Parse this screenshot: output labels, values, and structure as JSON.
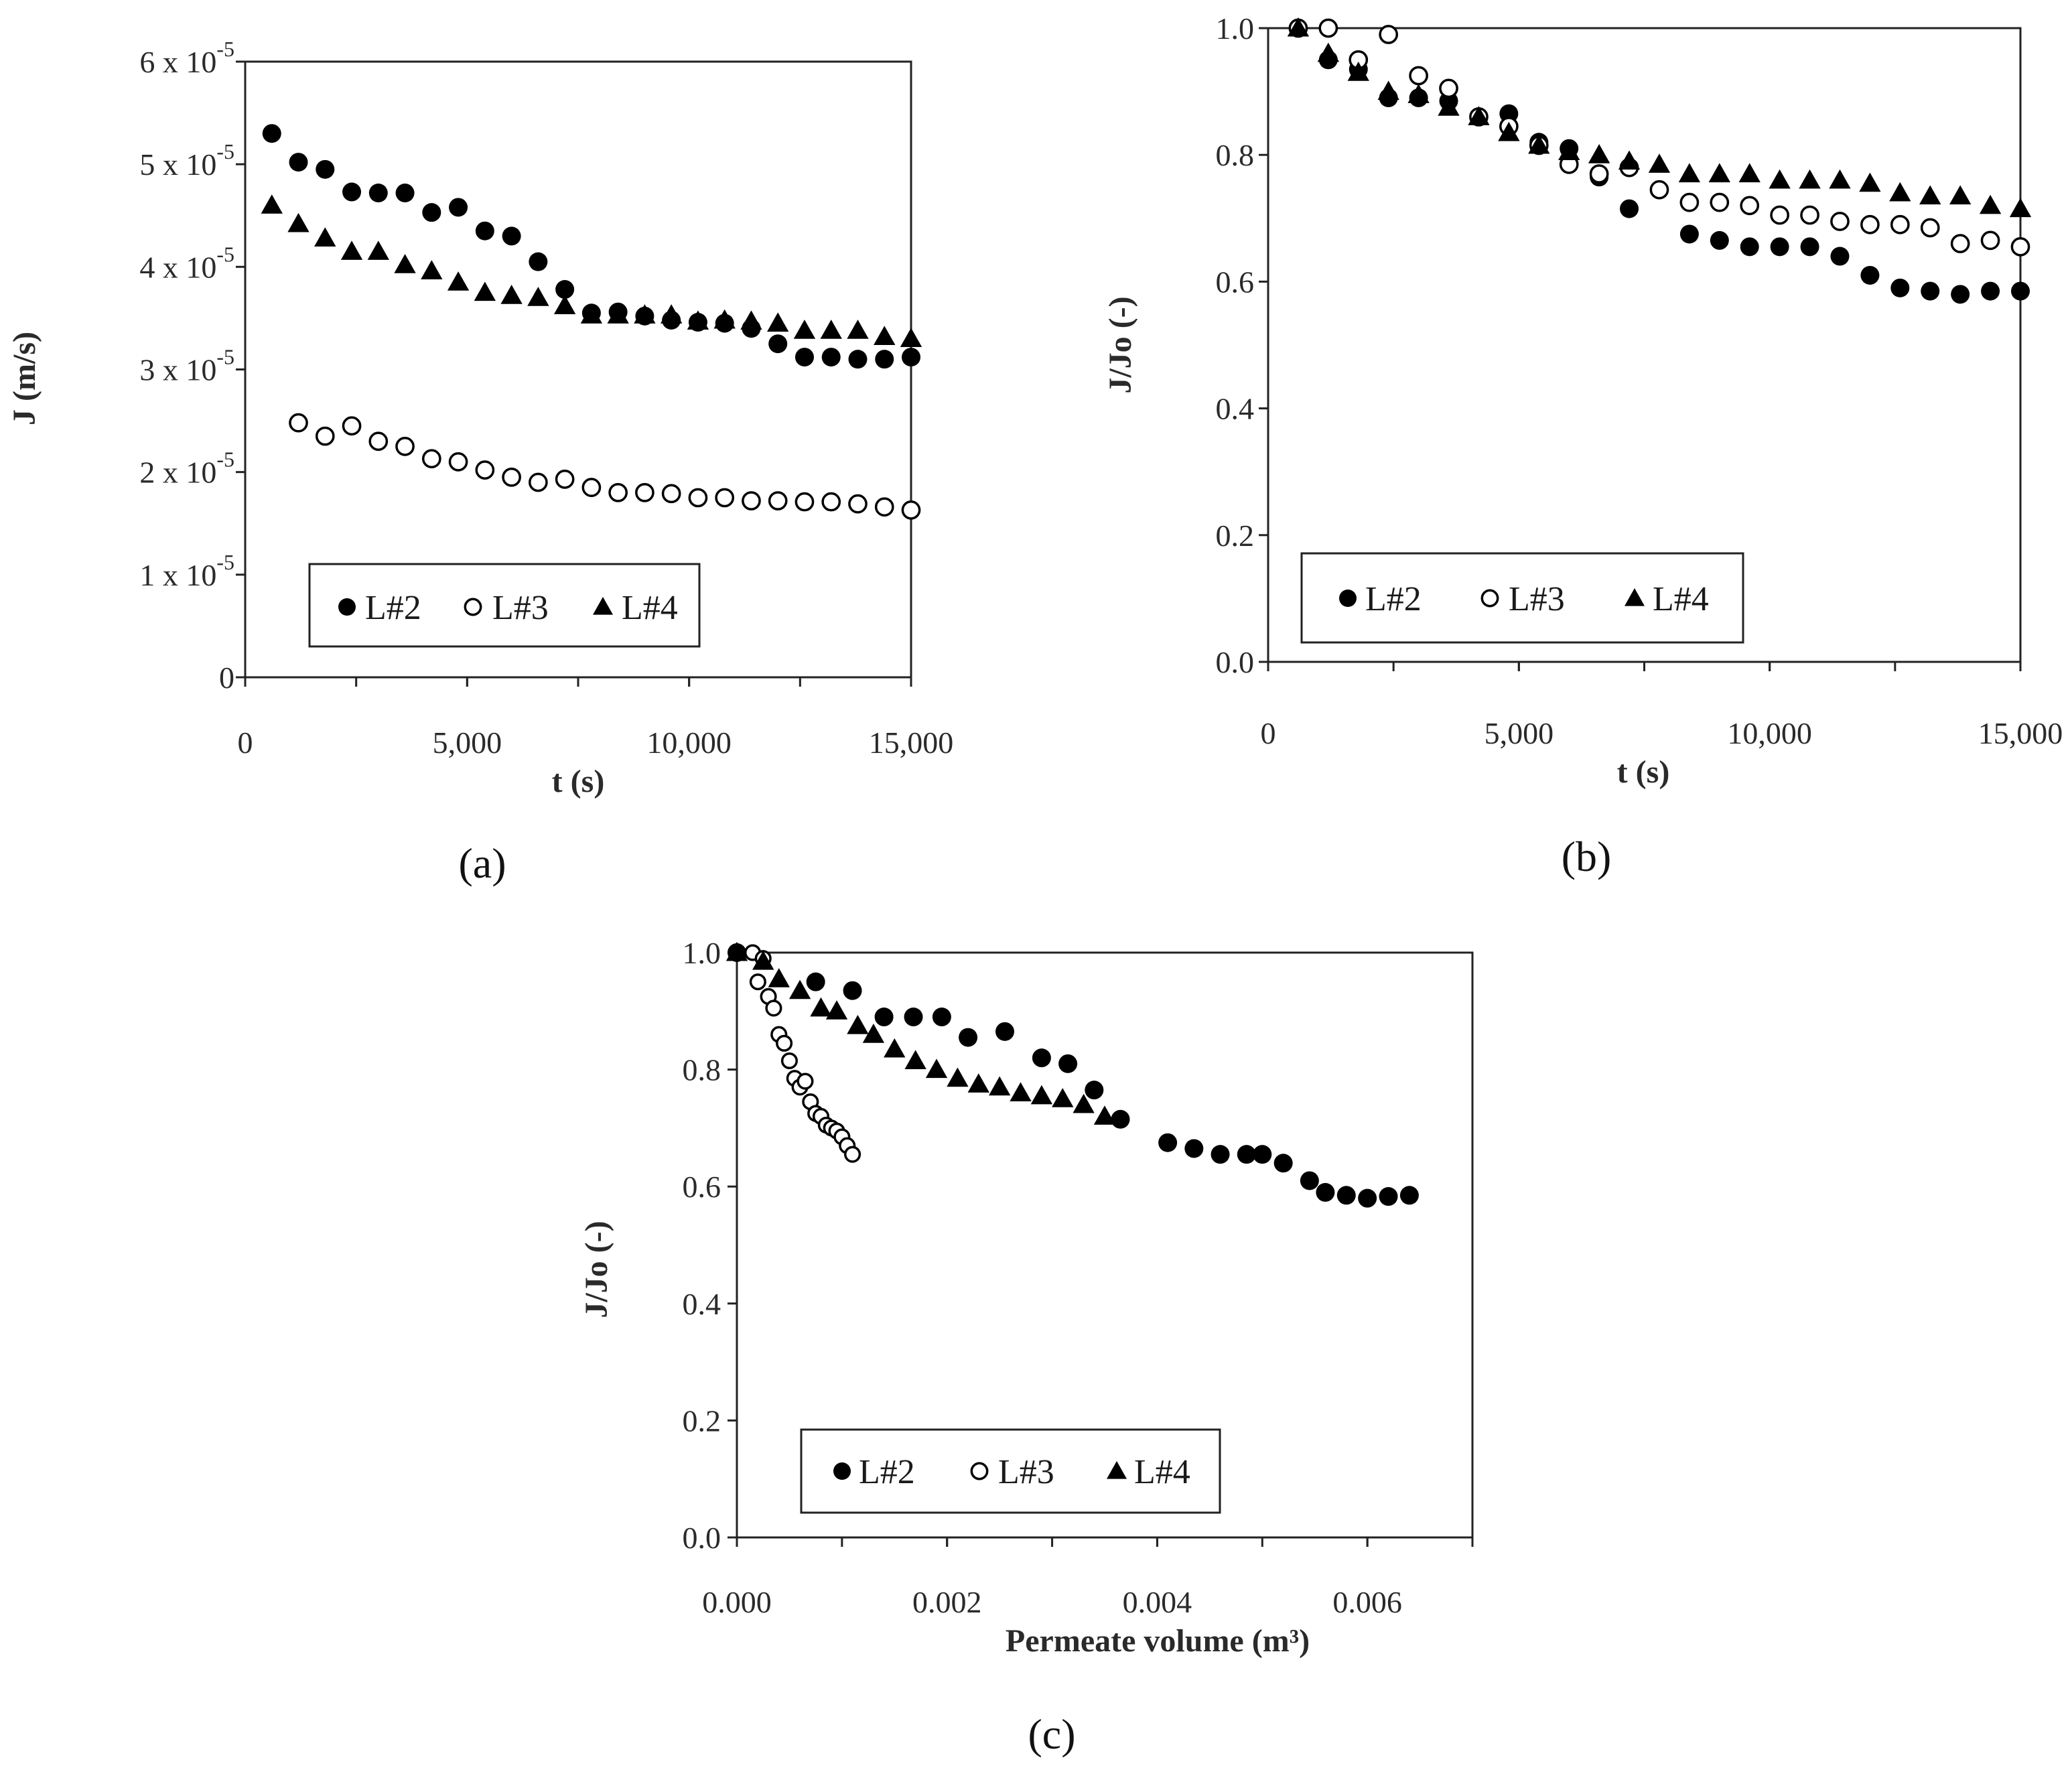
{
  "colors": {
    "ink": "#000000",
    "axis": "#222222",
    "background": "#ffffff"
  },
  "chart_data": [
    {
      "panel": "a",
      "type": "scatter",
      "xlabel": "t (s)",
      "ylabel": "J (m/s)",
      "xlim": [
        0,
        15000
      ],
      "ylim": [
        0,
        6e-05
      ],
      "xticks": [
        "0",
        "5,000",
        "10,000",
        "15,000"
      ],
      "yticks": [
        "0",
        "1 x 10-5",
        "2 x 10-5",
        "3 x 10-5",
        "4 x 10-5",
        "5 x 10-5",
        "6 x 10-5"
      ],
      "legend": [
        "L#2",
        "L#3",
        "L#4"
      ],
      "series": [
        {
          "name": "L#2",
          "marker": "filled-circle",
          "x": [
            600,
            1200,
            1800,
            2400,
            3000,
            3600,
            4200,
            4800,
            5400,
            6000,
            6600,
            7200,
            7800,
            8400,
            9000,
            9600,
            10200,
            10800,
            11400,
            12000,
            12600,
            13200,
            13800,
            14400,
            15000
          ],
          "y": [
            5.3e-05,
            5.02e-05,
            4.95e-05,
            4.73e-05,
            4.72e-05,
            4.72e-05,
            4.53e-05,
            4.58e-05,
            4.35e-05,
            4.3e-05,
            4.05e-05,
            3.78e-05,
            3.55e-05,
            3.56e-05,
            3.52e-05,
            3.48e-05,
            3.46e-05,
            3.45e-05,
            3.4e-05,
            3.25e-05,
            3.12e-05,
            3.12e-05,
            3.1e-05,
            3.1e-05,
            3.12e-05
          ]
        },
        {
          "name": "L#3",
          "marker": "open-circle",
          "x": [
            1200,
            1800,
            2400,
            3000,
            3600,
            4200,
            4800,
            5400,
            6000,
            6600,
            7200,
            7800,
            8400,
            9000,
            9600,
            10200,
            10800,
            11400,
            12000,
            12600,
            13200,
            13800,
            14400,
            15000
          ],
          "y": [
            2.48e-05,
            2.35e-05,
            2.45e-05,
            2.3e-05,
            2.25e-05,
            2.13e-05,
            2.1e-05,
            2.02e-05,
            1.95e-05,
            1.9e-05,
            1.93e-05,
            1.85e-05,
            1.8e-05,
            1.8e-05,
            1.79e-05,
            1.75e-05,
            1.75e-05,
            1.72e-05,
            1.72e-05,
            1.71e-05,
            1.71e-05,
            1.69e-05,
            1.66e-05,
            1.63e-05
          ]
        },
        {
          "name": "L#4",
          "marker": "filled-triangle",
          "x": [
            600,
            1200,
            1800,
            2400,
            3000,
            3600,
            4200,
            4800,
            5400,
            6000,
            6600,
            7200,
            7800,
            8400,
            9000,
            9600,
            10200,
            10800,
            11400,
            12000,
            12600,
            13200,
            13800,
            14400,
            15000
          ],
          "y": [
            4.6e-05,
            4.42e-05,
            4.28e-05,
            4.15e-05,
            4.15e-05,
            4.02e-05,
            3.96e-05,
            3.85e-05,
            3.75e-05,
            3.72e-05,
            3.7e-05,
            3.62e-05,
            3.53e-05,
            3.53e-05,
            3.53e-05,
            3.53e-05,
            3.47e-05,
            3.48e-05,
            3.47e-05,
            3.45e-05,
            3.38e-05,
            3.38e-05,
            3.38e-05,
            3.32e-05,
            3.3e-05
          ]
        }
      ],
      "label": "(a)"
    },
    {
      "panel": "b",
      "type": "scatter",
      "xlabel": "t (s)",
      "ylabel": "J/Jo (-)",
      "xlim": [
        0,
        15000
      ],
      "ylim": [
        0,
        1.0
      ],
      "xticks": [
        "0",
        "5,000",
        "10,000",
        "15,000"
      ],
      "yticks": [
        "0.0",
        "0.2",
        "0.4",
        "0.6",
        "0.8",
        "1.0"
      ],
      "legend": [
        "L#2",
        "L#3",
        "L#4"
      ],
      "series": [
        {
          "name": "L#2",
          "marker": "filled-circle",
          "x": [
            600,
            1200,
            1800,
            2400,
            3000,
            3600,
            4200,
            4800,
            5400,
            6000,
            6600,
            7200,
            8400,
            9000,
            9600,
            10200,
            10800,
            11400,
            12000,
            12600,
            13200,
            13800,
            14400,
            15000
          ],
          "y": [
            1.0,
            0.95,
            0.935,
            0.89,
            0.89,
            0.885,
            0.86,
            0.865,
            0.82,
            0.81,
            0.765,
            0.715,
            0.675,
            0.665,
            0.655,
            0.655,
            0.655,
            0.64,
            0.61,
            0.59,
            0.585,
            0.58,
            0.585,
            0.585
          ]
        },
        {
          "name": "L#3",
          "marker": "open-circle",
          "x": [
            600,
            1200,
            1800,
            2400,
            3000,
            3600,
            4200,
            4800,
            5400,
            6000,
            6600,
            7200,
            7800,
            8400,
            9000,
            9600,
            10200,
            10800,
            11400,
            12000,
            12600,
            13200,
            13800,
            14400,
            15000
          ],
          "y": [
            1.0,
            1.0,
            0.95,
            0.99,
            0.925,
            0.905,
            0.86,
            0.845,
            0.815,
            0.785,
            0.77,
            0.78,
            0.745,
            0.725,
            0.725,
            0.72,
            0.705,
            0.705,
            0.695,
            0.69,
            0.69,
            0.685,
            0.66,
            0.665,
            0.655
          ]
        },
        {
          "name": "L#4",
          "marker": "filled-triangle",
          "x": [
            600,
            1200,
            1800,
            2400,
            3000,
            3600,
            4200,
            4800,
            5400,
            6000,
            6600,
            7200,
            7800,
            8400,
            9000,
            9600,
            10200,
            10800,
            11400,
            12000,
            12600,
            13200,
            13800,
            14400,
            15000
          ],
          "y": [
            1.0,
            0.96,
            0.93,
            0.9,
            0.895,
            0.875,
            0.86,
            0.835,
            0.815,
            0.805,
            0.8,
            0.79,
            0.785,
            0.77,
            0.77,
            0.77,
            0.76,
            0.76,
            0.76,
            0.755,
            0.74,
            0.735,
            0.735,
            0.72,
            0.715
          ]
        }
      ],
      "label": "(b)"
    },
    {
      "panel": "c",
      "type": "scatter",
      "xlabel": "Permeate volume (m³)",
      "ylabel": "J/Jo (-)",
      "xlim": [
        0,
        0.007
      ],
      "ylim": [
        0,
        1.0
      ],
      "xticks": [
        "0.000",
        "0.002",
        "0.004",
        "0.006"
      ],
      "yticks": [
        "0.0",
        "0.2",
        "0.4",
        "0.6",
        "0.8",
        "1.0"
      ],
      "legend": [
        "L#2",
        "L#3",
        "L#4"
      ],
      "series": [
        {
          "name": "L#2",
          "marker": "filled-circle",
          "x": [
            0.0,
            0.00075,
            0.0011,
            0.0014,
            0.00168,
            0.00195,
            0.0022,
            0.00255,
            0.0029,
            0.00315,
            0.0034,
            0.00365,
            0.0041,
            0.00435,
            0.0046,
            0.00485,
            0.005,
            0.0052,
            0.00545,
            0.0056,
            0.0058,
            0.006,
            0.0062,
            0.0064
          ],
          "y": [
            1.0,
            0.95,
            0.935,
            0.89,
            0.89,
            0.89,
            0.855,
            0.865,
            0.82,
            0.81,
            0.765,
            0.715,
            0.675,
            0.665,
            0.655,
            0.655,
            0.655,
            0.64,
            0.61,
            0.59,
            0.585,
            0.58,
            0.583,
            0.585
          ]
        },
        {
          "name": "L#3",
          "marker": "open-circle",
          "x": [
            0.00015,
            0.0002,
            0.00025,
            0.0003,
            0.00035,
            0.0004,
            0.00045,
            0.0005,
            0.00055,
            0.0006,
            0.00065,
            0.0007,
            0.00075,
            0.0008,
            0.00085,
            0.0009,
            0.00095,
            0.001,
            0.00105,
            0.0011
          ],
          "y": [
            1.0,
            0.95,
            0.99,
            0.925,
            0.905,
            0.86,
            0.845,
            0.815,
            0.785,
            0.77,
            0.78,
            0.745,
            0.725,
            0.72,
            0.705,
            0.7,
            0.695,
            0.685,
            0.67,
            0.655
          ]
        },
        {
          "name": "L#4",
          "marker": "filled-triangle",
          "x": [
            0.0,
            0.00025,
            0.0004,
            0.0006,
            0.0008,
            0.00095,
            0.00115,
            0.0013,
            0.0015,
            0.0017,
            0.0019,
            0.0021,
            0.0023,
            0.0025,
            0.0027,
            0.0029,
            0.0031,
            0.0033,
            0.0035
          ],
          "y": [
            1.0,
            0.985,
            0.955,
            0.935,
            0.905,
            0.9,
            0.875,
            0.86,
            0.835,
            0.815,
            0.8,
            0.785,
            0.775,
            0.77,
            0.76,
            0.755,
            0.75,
            0.74,
            0.72
          ]
        }
      ],
      "label": "(c)"
    }
  ]
}
